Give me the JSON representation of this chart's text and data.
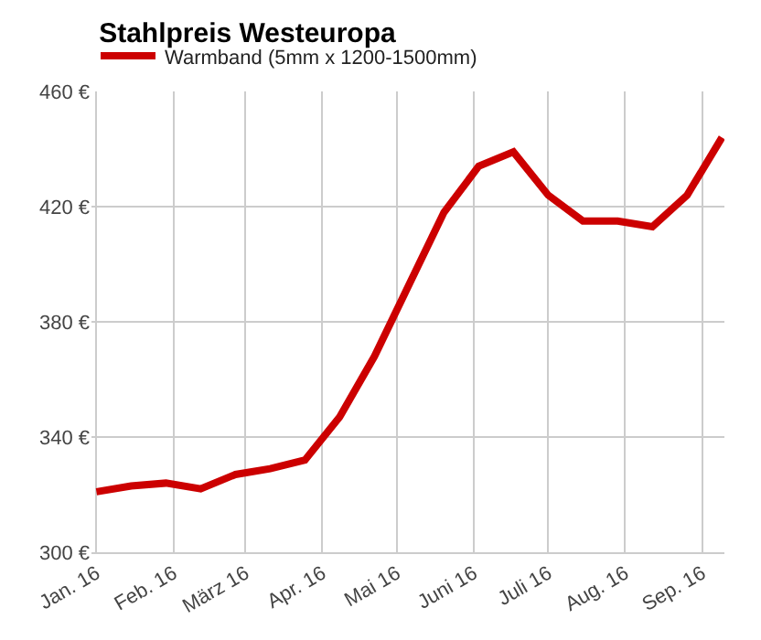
{
  "chart_data": {
    "type": "line",
    "title": "Stahlpreis Westeuropa",
    "legend": "top left",
    "grid": true,
    "marker": "none",
    "line_style": "solid",
    "x": [
      "2016-01-01",
      "2016-01-15",
      "2016-01-29",
      "2016-02-12",
      "2016-02-26",
      "2016-03-11",
      "2016-03-25",
      "2016-04-08",
      "2016-04-22",
      "2016-05-06",
      "2016-05-20",
      "2016-06-03",
      "2016-06-17",
      "2016-07-01",
      "2016-07-15",
      "2016-07-29",
      "2016-08-12",
      "2016-08-26",
      "2016-09-09"
    ],
    "series": [
      {
        "name": "Warmband (5mm x 1200-1500mm)",
        "color": "#cc0000",
        "values": [
          321,
          323,
          324,
          322,
          327,
          329,
          332,
          347,
          368,
          393,
          418,
          434,
          439,
          424,
          415,
          415,
          413,
          424,
          444
        ]
      }
    ],
    "xlim": [
      "2015-12-30",
      "2016-09-10"
    ],
    "xticks": [
      {
        "value": "2016-01-01",
        "label": "Jan. 16"
      },
      {
        "value": "2016-02-01",
        "label": "Feb. 16"
      },
      {
        "value": "2016-03-01",
        "label": "März 16"
      },
      {
        "value": "2016-04-01",
        "label": "Apr. 16"
      },
      {
        "value": "2016-05-01",
        "label": "Mai 16"
      },
      {
        "value": "2016-06-01",
        "label": "Juni 16"
      },
      {
        "value": "2016-07-01",
        "label": "Juli 16"
      },
      {
        "value": "2016-08-01",
        "label": "Aug. 16"
      },
      {
        "value": "2016-09-01",
        "label": "Sep. 16"
      }
    ],
    "ylim": [
      300,
      460
    ],
    "yticks": [
      {
        "value": 300,
        "label": "300 €"
      },
      {
        "value": 340,
        "label": "340 €"
      },
      {
        "value": 380,
        "label": "380 €"
      },
      {
        "value": 420,
        "label": "420 €"
      },
      {
        "value": 460,
        "label": "460 €"
      }
    ]
  }
}
